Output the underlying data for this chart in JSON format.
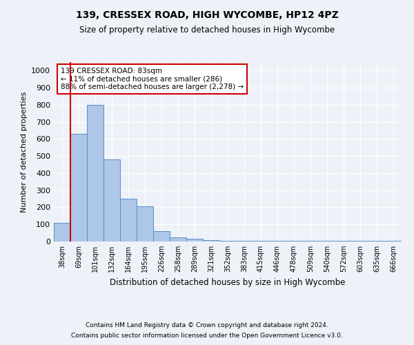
{
  "title1": "139, CRESSEX ROAD, HIGH WYCOMBE, HP12 4PZ",
  "title2": "Size of property relative to detached houses in High Wycombe",
  "xlabel": "Distribution of detached houses by size in High Wycombe",
  "ylabel": "Number of detached properties",
  "bin_labels": [
    "38sqm",
    "69sqm",
    "101sqm",
    "132sqm",
    "164sqm",
    "195sqm",
    "226sqm",
    "258sqm",
    "289sqm",
    "321sqm",
    "352sqm",
    "383sqm",
    "415sqm",
    "446sqm",
    "478sqm",
    "509sqm",
    "540sqm",
    "572sqm",
    "603sqm",
    "635sqm",
    "666sqm"
  ],
  "bar_values": [
    110,
    630,
    800,
    480,
    250,
    205,
    60,
    25,
    15,
    10,
    5,
    5,
    5,
    5,
    3,
    3,
    3,
    3,
    3,
    3,
    3
  ],
  "bar_color": "#aec6e8",
  "bar_edge_color": "#5a8fc2",
  "vline_color": "#cc0000",
  "annotation_text": "139 CRESSEX ROAD: 83sqm\n← 11% of detached houses are smaller (286)\n88% of semi-detached houses are larger (2,278) →",
  "annotation_box_color": "#ffffff",
  "annotation_box_edge": "#cc0000",
  "ylim": [
    0,
    1050
  ],
  "yticks": [
    0,
    100,
    200,
    300,
    400,
    500,
    600,
    700,
    800,
    900,
    1000
  ],
  "footer1": "Contains HM Land Registry data © Crown copyright and database right 2024.",
  "footer2": "Contains public sector information licensed under the Open Government Licence v3.0.",
  "bg_color": "#eef2f8",
  "plot_bg_color": "#eef2f8",
  "grid_color": "#ffffff"
}
